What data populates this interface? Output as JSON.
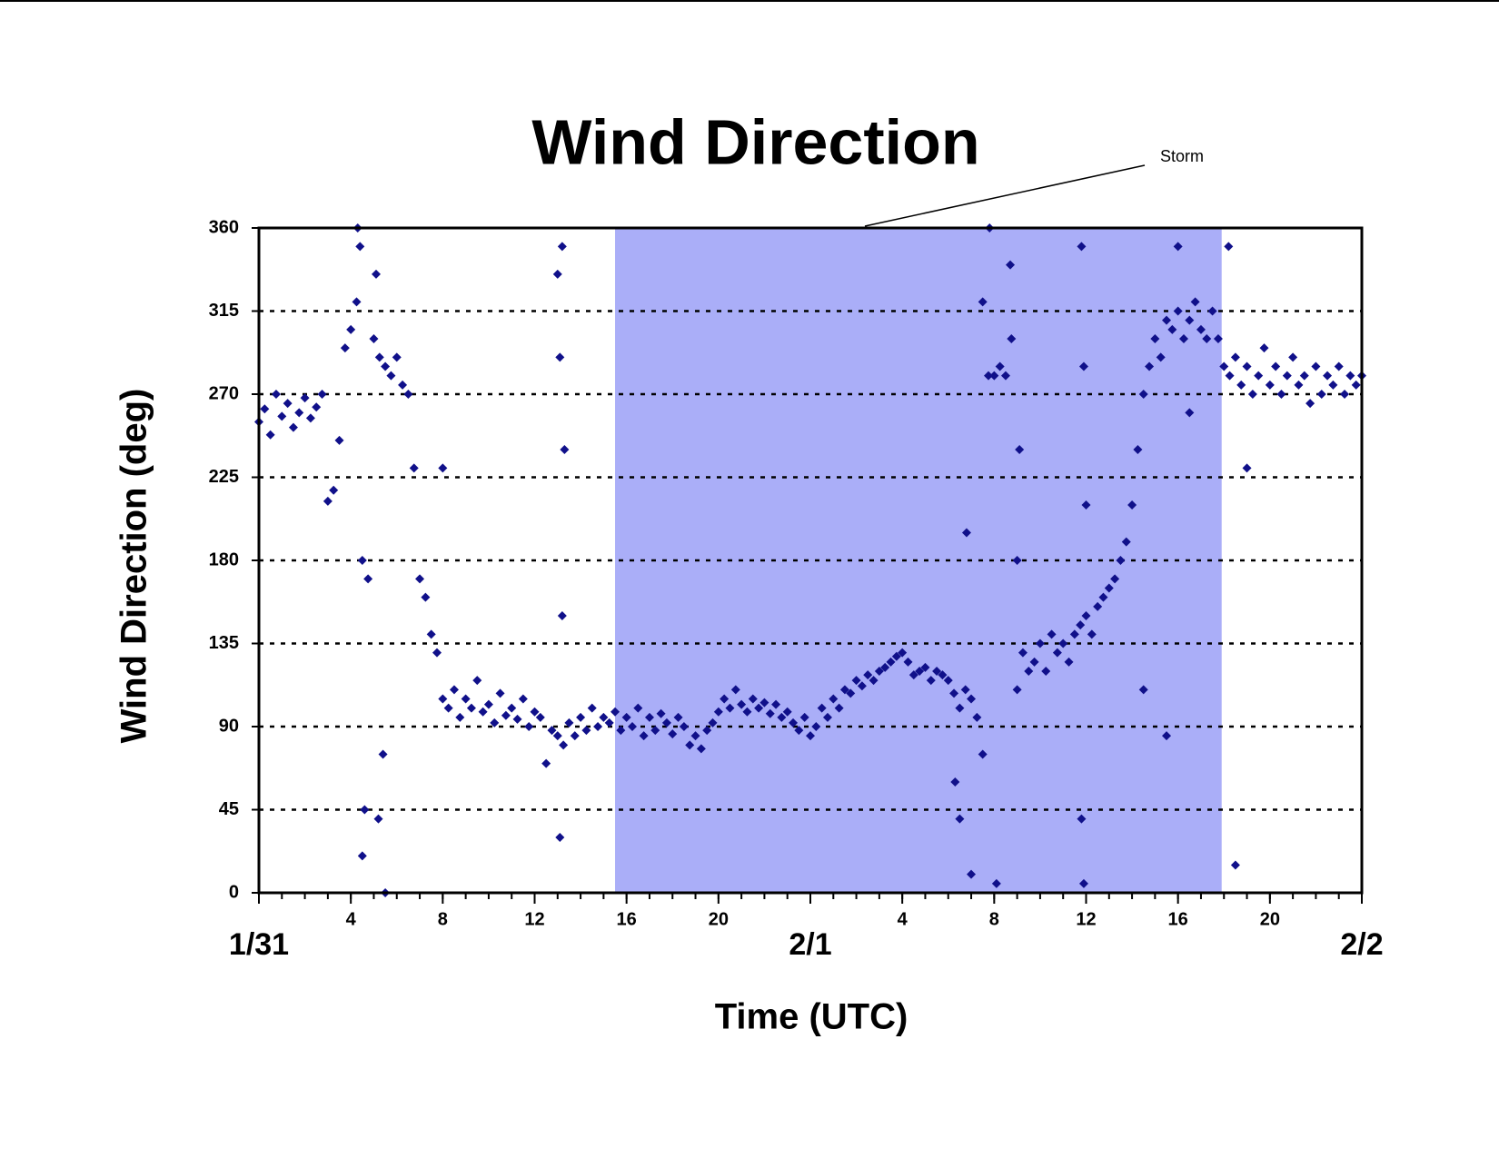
{
  "chart_data": {
    "type": "scatter",
    "title": "Wind Direction",
    "x_label": "Time (UTC)",
    "y_label": "Wind Direction (deg)",
    "annotation": "Storm",
    "shaded_span": [
      15.5,
      41.9
    ],
    "shade_color": "#aaaef8",
    "color": "#10108a",
    "grid": true,
    "xlim": [
      0,
      48
    ],
    "ylim": [
      0,
      360
    ],
    "yticks": [
      0,
      45,
      90,
      135,
      180,
      225,
      270,
      315,
      360
    ],
    "xticks": [
      4,
      8,
      12,
      16,
      20,
      {
        "value": 28,
        "label": "4"
      },
      {
        "value": 32,
        "label": "8"
      },
      {
        "value": 36,
        "label": "12"
      },
      {
        "value": 40,
        "label": "16"
      },
      {
        "value": 44,
        "label": "20"
      }
    ],
    "x_date_ticks": [
      {
        "value": 0,
        "label": "1/31"
      },
      {
        "value": 24,
        "label": "2/1"
      },
      {
        "value": 48,
        "label": "2/2"
      }
    ],
    "minor_xticks": [
      0,
      1,
      2,
      3,
      4,
      5,
      6,
      7,
      8,
      9,
      10,
      11,
      12,
      13,
      14,
      15,
      16,
      17,
      18,
      19,
      20,
      21,
      22,
      23,
      24,
      25,
      26,
      27,
      28,
      29,
      30,
      31,
      32,
      33,
      34,
      35,
      36,
      37,
      38,
      39,
      40,
      41,
      42,
      43,
      44,
      45,
      46,
      47,
      48
    ],
    "x": [
      0,
      0.25,
      0.5,
      0.75,
      1,
      1.25,
      1.5,
      1.75,
      2,
      2.25,
      2.5,
      2.75,
      3,
      3.25,
      3.5,
      3.75,
      4,
      4.25,
      4.5,
      4.75,
      5,
      5.25,
      5.5,
      5.75,
      6,
      6.25,
      6.5,
      6.75,
      7,
      7.25,
      7.5,
      7.75,
      8,
      8.25,
      8.5,
      8.75,
      9,
      9.25,
      9.5,
      9.75,
      10,
      10.25,
      10.5,
      10.75,
      11,
      11.25,
      11.5,
      11.75,
      12,
      12.25,
      12.5,
      12.75,
      13,
      13.25,
      13.5,
      13.75,
      14,
      14.25,
      14.5,
      14.75,
      15,
      15.25,
      15.5,
      15.75,
      16,
      16.25,
      16.5,
      16.75,
      17,
      17.25,
      17.5,
      17.75,
      18,
      18.25,
      18.5,
      18.75,
      19,
      19.25,
      19.5,
      19.75,
      20,
      20.25,
      20.5,
      20.75,
      21,
      21.25,
      21.5,
      21.75,
      22,
      22.25,
      22.5,
      22.75,
      23,
      23.25,
      23.5,
      23.75,
      24,
      24.25,
      24.5,
      24.75,
      25,
      25.25,
      25.5,
      25.75,
      26,
      26.25,
      26.5,
      26.75,
      27,
      27.25,
      27.5,
      27.75,
      28,
      28.25,
      28.5,
      28.75,
      29,
      29.25,
      29.5,
      29.75,
      30,
      30.25,
      30.5,
      30.75,
      31,
      31.25,
      31.5,
      31.75,
      32,
      32.25,
      32.5,
      32.75,
      33,
      33.25,
      33.5,
      33.75,
      34,
      34.25,
      34.5,
      34.75,
      35,
      35.25,
      35.5,
      35.75,
      36,
      36.25,
      36.5,
      36.75,
      37,
      37.25,
      37.5,
      37.75,
      38,
      38.25,
      38.5,
      38.75,
      39,
      39.25,
      39.5,
      39.75,
      40,
      40.25,
      40.5,
      40.75,
      41,
      41.25,
      41.5,
      41.75,
      42,
      42.25,
      42.5,
      42.75,
      43,
      43.25,
      43.5,
      43.75,
      44,
      44.25,
      44.5,
      44.75,
      45,
      45.25,
      45.5,
      45.75,
      46,
      46.25,
      46.5,
      46.75,
      47,
      47.25,
      47.5,
      47.75,
      48,
      4.3,
      4.4,
      4.5,
      4.6,
      5.1,
      5.2,
      5.5,
      5.4,
      13,
      13.1,
      13.2,
      13.1,
      13.3,
      13.2,
      31.5,
      31.8,
      32.1,
      32.7,
      33.1,
      33,
      30.5,
      31,
      35.8,
      35.8,
      35.9,
      35.9,
      36,
      38.5,
      39.5,
      40,
      40.5,
      42.2,
      42.5,
      43,
      30.8,
      30.3,
      8
    ],
    "values": [
      255,
      262,
      248,
      270,
      258,
      265,
      252,
      260,
      268,
      257,
      263,
      270,
      212,
      218,
      245,
      295,
      305,
      320,
      180,
      170,
      300,
      290,
      285,
      280,
      290,
      275,
      270,
      230,
      170,
      160,
      140,
      130,
      105,
      100,
      110,
      95,
      105,
      100,
      115,
      98,
      102,
      92,
      108,
      96,
      100,
      94,
      105,
      90,
      98,
      95,
      70,
      88,
      85,
      80,
      92,
      85,
      95,
      88,
      100,
      90,
      95,
      92,
      98,
      88,
      95,
      90,
      100,
      85,
      95,
      88,
      97,
      92,
      86,
      95,
      90,
      80,
      85,
      78,
      88,
      92,
      98,
      105,
      100,
      110,
      102,
      98,
      105,
      100,
      103,
      97,
      102,
      95,
      98,
      92,
      88,
      95,
      85,
      90,
      100,
      95,
      105,
      100,
      110,
      108,
      115,
      112,
      118,
      115,
      120,
      122,
      125,
      128,
      130,
      125,
      118,
      120,
      122,
      115,
      120,
      118,
      115,
      108,
      100,
      110,
      105,
      95,
      75,
      280,
      280,
      285,
      280,
      300,
      110,
      130,
      120,
      125,
      135,
      120,
      140,
      130,
      135,
      125,
      140,
      145,
      150,
      140,
      155,
      160,
      165,
      170,
      180,
      190,
      210,
      240,
      270,
      285,
      300,
      290,
      310,
      305,
      315,
      300,
      310,
      320,
      305,
      300,
      315,
      300,
      285,
      280,
      290,
      275,
      285,
      270,
      280,
      295,
      275,
      285,
      270,
      280,
      290,
      275,
      280,
      265,
      285,
      270,
      280,
      275,
      285,
      270,
      280,
      275,
      280,
      360,
      350,
      20,
      45,
      335,
      40,
      0,
      75,
      335,
      290,
      350,
      30,
      240,
      150,
      320,
      360,
      5,
      340,
      240,
      180,
      40,
      10,
      350,
      40,
      5,
      285,
      210,
      110,
      85,
      350,
      260,
      350,
      15,
      230,
      195,
      60,
      230
    ]
  }
}
